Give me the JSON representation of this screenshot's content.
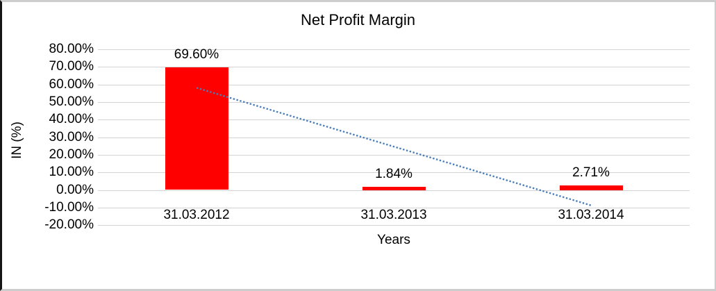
{
  "chart_data": {
    "type": "bar",
    "title": "Net Profit Margin",
    "xlabel": "Years",
    "ylabel": "IN (%)",
    "categories": [
      "31.03.2012",
      "31.03.2013",
      "31.03.2014"
    ],
    "values": [
      69.6,
      1.84,
      2.71
    ],
    "data_labels": [
      "69.60%",
      "1.84%",
      "2.71%"
    ],
    "ytick_labels": [
      "80.00%",
      "70.00%",
      "60.00%",
      "50.00%",
      "40.00%",
      "30.00%",
      "20.00%",
      "10.00%",
      "0.00%",
      "-10.00%",
      "-20.00%"
    ],
    "ylim": [
      -20,
      80
    ],
    "ytick_step": 10,
    "grid": true,
    "legend": "none",
    "bar_color": "#ff0000",
    "gridline_color": "#d3d3d3",
    "trendline": {
      "type": "linear",
      "style": "dotted",
      "color": "#4a7ebb",
      "start_value_pct": 58.1,
      "end_value_pct": -8.7
    }
  }
}
